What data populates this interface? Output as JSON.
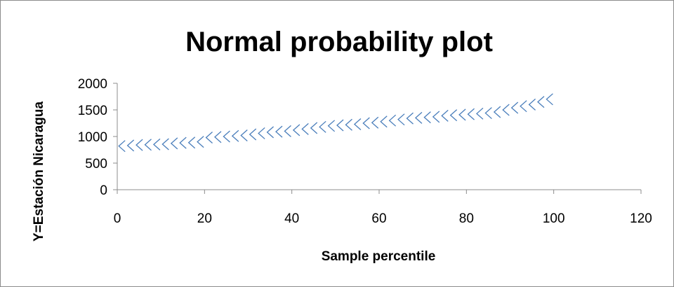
{
  "chart_data": {
    "type": "scatter",
    "title": "Normal probability plot",
    "xlabel": "Sample percentile",
    "ylabel": "Y=Estación Nicaragua",
    "xlim": [
      0,
      120
    ],
    "ylim": [
      0,
      2000
    ],
    "x_ticks": [
      "0",
      "20",
      "40",
      "60",
      "80",
      "100",
      "120"
    ],
    "y_ticks": [
      "0",
      "500",
      "1000",
      "1500",
      "2000"
    ],
    "grid": false,
    "legend": "none",
    "marker": "chevron",
    "marker_color": "#4a7ebb",
    "x": [
      1,
      3,
      5,
      7,
      9,
      11,
      13,
      15,
      17,
      19,
      21,
      23,
      25,
      27,
      29,
      31,
      33,
      35,
      37,
      39,
      41,
      43,
      45,
      47,
      49,
      51,
      53,
      55,
      57,
      59,
      61,
      63,
      65,
      67,
      69,
      71,
      73,
      75,
      77,
      79,
      81,
      83,
      85,
      87,
      89,
      91,
      93,
      95,
      97,
      99
    ],
    "y": [
      820,
      830,
      840,
      845,
      850,
      855,
      870,
      880,
      885,
      900,
      980,
      990,
      1000,
      1010,
      1020,
      1040,
      1060,
      1080,
      1090,
      1100,
      1120,
      1140,
      1160,
      1180,
      1200,
      1210,
      1220,
      1230,
      1250,
      1260,
      1280,
      1300,
      1320,
      1340,
      1350,
      1360,
      1370,
      1390,
      1400,
      1410,
      1420,
      1430,
      1440,
      1460,
      1500,
      1540,
      1570,
      1600,
      1650,
      1700
    ]
  }
}
